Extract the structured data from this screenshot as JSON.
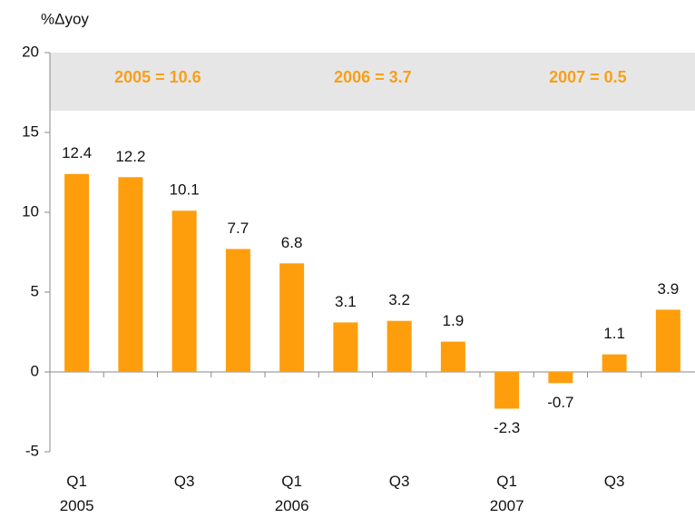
{
  "chart_data": {
    "type": "bar",
    "y_label": "%Δyoy",
    "categories": [
      "Q1\n2005",
      null,
      "Q3",
      null,
      "Q1\n2006",
      null,
      "Q3",
      null,
      "Q1\n2007",
      null,
      "Q3",
      null
    ],
    "values": [
      12.4,
      12.2,
      10.1,
      7.7,
      6.8,
      3.1,
      3.2,
      1.9,
      -2.3,
      -0.7,
      1.1,
      3.9
    ],
    "color": "#ff9e0c",
    "annotations": [
      "2005 = 10.6",
      "2006 = 3.7",
      "2007 = 0.5"
    ],
    "annotation_color": "#f7a01a",
    "ylim": [
      -5,
      20
    ],
    "yticks": [
      -5,
      0,
      5,
      10,
      15,
      20
    ],
    "grid": false
  }
}
